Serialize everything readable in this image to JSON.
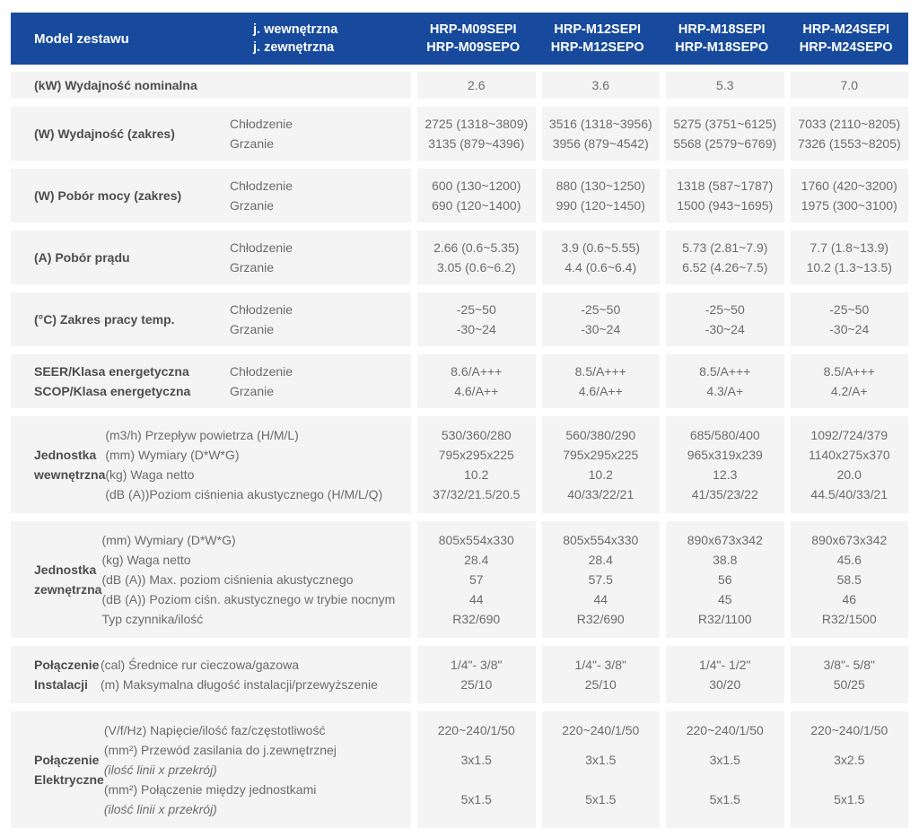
{
  "colors": {
    "header_bg": "#174a9c",
    "header_text": "#ffffff",
    "row_bg": "#f4f4f4",
    "label_text": "#4d4d4d",
    "value_text": "#6b6b6b"
  },
  "header": {
    "model_label": "Model zestawu",
    "unit_labels": [
      "j. wewnętrzna",
      "j. zewnętrzna"
    ],
    "models": [
      {
        "indoor": "HRP-M09SEPI",
        "outdoor": "HRP-M09SEPO"
      },
      {
        "indoor": "HRP-M12SEPI",
        "outdoor": "HRP-M12SEPO"
      },
      {
        "indoor": "HRP-M18SEPI",
        "outdoor": "HRP-M18SEPO"
      },
      {
        "indoor": "HRP-M24SEPI",
        "outdoor": "HRP-M24SEPO"
      }
    ]
  },
  "rows": [
    {
      "type": "simple",
      "label_lines": [
        "(kW) Wydajność nominalna"
      ],
      "sublabels": [],
      "values": [
        [
          "2.6"
        ],
        [
          "3.6"
        ],
        [
          "5.3"
        ],
        [
          "7.0"
        ]
      ]
    },
    {
      "type": "simple",
      "label_lines": [
        "(W) Wydajność (zakres)"
      ],
      "sublabels": [
        "Chłodzenie",
        "Grzanie"
      ],
      "values": [
        [
          "2725 (1318~3809)",
          "3135 (879~4396)"
        ],
        [
          "3516 (1318~3956)",
          "3956 (879~4542)"
        ],
        [
          "5275 (3751~6125)",
          "5568 (2579~6769)"
        ],
        [
          "7033 (2110~8205)",
          "7326 (1553~8205)"
        ]
      ]
    },
    {
      "type": "simple",
      "label_lines": [
        "(W) Pobór mocy (zakres)"
      ],
      "sublabels": [
        "Chłodzenie",
        "Grzanie"
      ],
      "values": [
        [
          "600 (130~1200)",
          "690 (120~1400)"
        ],
        [
          "880 (130~1250)",
          "990 (120~1450)"
        ],
        [
          "1318 (587~1787)",
          "1500 (943~1695)"
        ],
        [
          "1760 (420~3200)",
          "1975 (300~3100)"
        ]
      ]
    },
    {
      "type": "simple",
      "label_lines": [
        "(A) Pobór prądu"
      ],
      "sublabels": [
        "Chłodzenie",
        "Grzanie"
      ],
      "values": [
        [
          "2.66 (0.6~5.35)",
          "3.05 (0.6~6.2)"
        ],
        [
          "3.9 (0.6~5.55)",
          "4.4 (0.6~6.4)"
        ],
        [
          "5.73 (2.81~7.9)",
          "6.52 (4.26~7.5)"
        ],
        [
          "7.7 (1.8~13.9)",
          "10.2 (1.3~13.5)"
        ]
      ]
    },
    {
      "type": "simple",
      "label_lines": [
        "(°C) Zakres pracy temp."
      ],
      "sublabels": [
        "Chłodzenie",
        "Grzanie"
      ],
      "values": [
        [
          "-25~50",
          "-30~24"
        ],
        [
          "-25~50",
          "-30~24"
        ],
        [
          "-25~50",
          "-30~24"
        ],
        [
          "-25~50",
          "-30~24"
        ]
      ]
    },
    {
      "type": "simple",
      "label_lines": [
        "SEER/Klasa energetyczna",
        "SCOP/Klasa energetyczna"
      ],
      "sublabels": [
        "Chłodzenie",
        "Grzanie"
      ],
      "values": [
        [
          "8.6/A+++",
          "4.6/A++"
        ],
        [
          "8.5/A+++",
          "4.6/A++"
        ],
        [
          "8.5/A+++",
          "4.3/A+"
        ],
        [
          "8.5/A+++",
          "4.2/A+"
        ]
      ]
    },
    {
      "type": "section",
      "section_lines": [
        "Jednostka",
        "wewnętrzna"
      ],
      "params": [
        {
          "text": "(m3/h) Przepływ powietrza (H/M/L)"
        },
        {
          "text": "(mm) Wymiary (D*W*G)"
        },
        {
          "text": "(kg) Waga netto"
        },
        {
          "text": "(dB (A))Poziom ciśnienia akustycznego (H/M/L/Q)"
        }
      ],
      "values": [
        [
          "530/360/280",
          "795x295x225",
          "10.2",
          "37/32/21.5/20.5"
        ],
        [
          "560/380/290",
          "795x295x225",
          "10.2",
          "40/33/22/21"
        ],
        [
          "685/580/400",
          "965x319x239",
          "12.3",
          "41/35/23/22"
        ],
        [
          "1092/724/379",
          "1140x275x370",
          "20.0",
          "44.5/40/33/21"
        ]
      ]
    },
    {
      "type": "section",
      "section_lines": [
        "Jednostka",
        "zewnętrzna"
      ],
      "params": [
        {
          "text": "(mm) Wymiary (D*W*G)"
        },
        {
          "text": "(kg) Waga netto"
        },
        {
          "text": "(dB (A)) Max. poziom ciśnienia akustycznego"
        },
        {
          "text": "(dB (A)) Poziom ciśn. akustycznego w trybie nocnym"
        },
        {
          "text": "Typ czynnika/ilość"
        }
      ],
      "values": [
        [
          "805x554x330",
          "28.4",
          "57",
          "44",
          "R32/690"
        ],
        [
          "805x554x330",
          "28.4",
          "57.5",
          "44",
          "R32/690"
        ],
        [
          "890x673x342",
          "38.8",
          "56",
          "45",
          "R32/1100"
        ],
        [
          "890x673x342",
          "45.6",
          "58.5",
          "46",
          "R32/1500"
        ]
      ]
    },
    {
      "type": "section",
      "section_lines": [
        "Połączenie",
        "Instalacji"
      ],
      "params": [
        {
          "text": "(cal) Średnice rur cieczowa/gazowa"
        },
        {
          "text": "(m) Maksymalna długość instalacji/przewyższenie"
        }
      ],
      "values": [
        [
          "1/4\"- 3/8\"",
          "25/10"
        ],
        [
          "1/4\"- 3/8\"",
          "25/10"
        ],
        [
          "1/4\"- 1/2\"",
          "30/20"
        ],
        [
          "3/8\"- 5/8\"",
          "50/25"
        ]
      ]
    },
    {
      "type": "section",
      "section_lines": [
        "Połączenie",
        "Elektryczne"
      ],
      "params": [
        {
          "text": "(V/f/Hz) Napięcie/ilość faz/częstotliwość"
        },
        {
          "text": "(mm²) Przewód zasilania do j.zewnętrznej",
          "note": "(ilość linii x przekrój)"
        },
        {
          "text": "(mm²) Połączenie między jednostkami",
          "note": "(ilość linii x przekrój)"
        }
      ],
      "values": [
        [
          "220~240/1/50",
          "3x1.5",
          "5x1.5"
        ],
        [
          "220~240/1/50",
          "3x1.5",
          "5x1.5"
        ],
        [
          "220~240/1/50",
          "3x1.5",
          "5x1.5"
        ],
        [
          "220~240/1/50",
          "3x2.5",
          "5x1.5"
        ]
      ]
    }
  ]
}
